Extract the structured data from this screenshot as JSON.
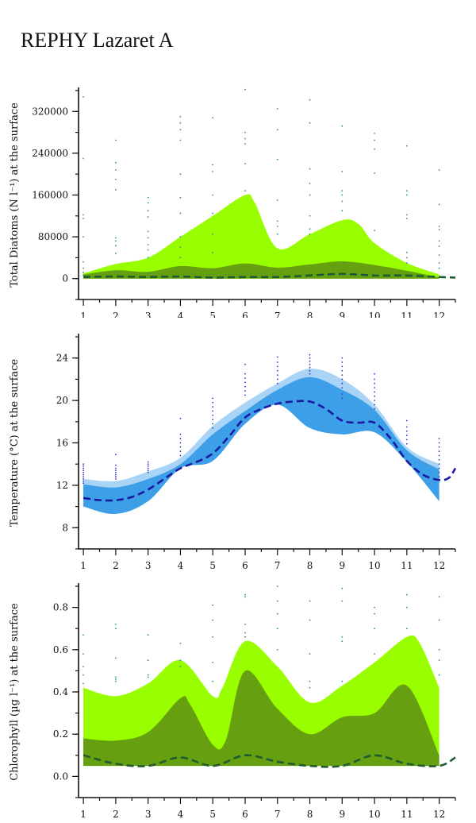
{
  "page_title": "REPHY Lazaret A",
  "chart_data": [
    {
      "id": "diatoms",
      "type": "area",
      "ylabel": "Total Diatoms (N l⁻¹) at the surface",
      "x_ticks": [
        1,
        2,
        3,
        4,
        5,
        6,
        7,
        8,
        9,
        10,
        11,
        12
      ],
      "xlim": [
        0.85,
        12.5
      ],
      "ylim": [
        -40000,
        360000
      ],
      "y_ticks": [
        0,
        80000,
        160000,
        240000,
        320000
      ],
      "y_tick_labels": [
        "0",
        "80000",
        "160000",
        "240000",
        "320000"
      ],
      "colors": {
        "outer_band": "#99ff00",
        "inner_band": "#66a010",
        "median": "#1e5c2f",
        "points": "#2a8f9a"
      },
      "outer_band": {
        "x": [
          1,
          2,
          3,
          4,
          5,
          6,
          6.3,
          7,
          8,
          9,
          9.5,
          10,
          11,
          12
        ],
        "upper": [
          10000,
          28000,
          40000,
          80000,
          120000,
          160000,
          145000,
          58000,
          85000,
          112000,
          105000,
          68000,
          30000,
          8000
        ],
        "lower": [
          0,
          0,
          0,
          0,
          0,
          0,
          0,
          0,
          0,
          0,
          0,
          0,
          0,
          0
        ]
      },
      "inner_band": {
        "x": [
          1,
          2,
          3,
          4,
          5,
          6,
          7,
          8,
          9,
          10,
          11,
          12
        ],
        "upper": [
          8000,
          16000,
          13000,
          24000,
          20000,
          29000,
          21000,
          27000,
          33000,
          26000,
          15000,
          2000
        ],
        "lower": [
          0,
          0,
          0,
          0,
          0,
          0,
          0,
          0,
          0,
          0,
          0,
          0
        ]
      },
      "median": {
        "x": [
          1,
          2,
          3,
          4,
          5,
          6,
          7,
          8,
          9,
          10,
          11,
          12,
          12.5
        ],
        "y": [
          3000,
          4000,
          3000,
          4000,
          2000,
          3000,
          3000,
          6000,
          9000,
          6000,
          6000,
          3000,
          2000
        ]
      },
      "points": [
        {
          "month": 1,
          "values": [
            348000,
            230000,
            122000,
            115000,
            80000,
            32000,
            20000,
            12000,
            6000
          ]
        },
        {
          "month": 2,
          "values": [
            265000,
            222000,
            208000,
            190000,
            170000,
            78000,
            72000,
            63000,
            48000,
            12000
          ]
        },
        {
          "month": 3,
          "values": [
            155000,
            145000,
            130000,
            118000,
            90000,
            78000,
            65000,
            55000,
            40000,
            10000
          ]
        },
        {
          "month": 4,
          "values": [
            310000,
            298000,
            285000,
            265000,
            200000,
            155000,
            125000,
            80000,
            60000,
            40000
          ]
        },
        {
          "month": 5,
          "values": [
            308000,
            218000,
            205000,
            160000,
            125000,
            85000,
            50000
          ]
        },
        {
          "month": 6,
          "values": [
            362000,
            280000,
            268000,
            258000,
            220000,
            168000
          ]
        },
        {
          "month": 7,
          "values": [
            325000,
            285000,
            228000,
            150000,
            110000,
            100000,
            85000
          ]
        },
        {
          "month": 8,
          "values": [
            342000,
            298000,
            210000,
            182000,
            160000,
            120000,
            95000,
            85000
          ]
        },
        {
          "month": 9,
          "values": [
            292000,
            205000,
            168000,
            160000,
            148000,
            130000
          ]
        },
        {
          "month": 10,
          "values": [
            278000,
            265000,
            248000,
            202000,
            92000
          ]
        },
        {
          "month": 11,
          "values": [
            254000,
            168000,
            160000,
            122000,
            115000,
            50000,
            40000,
            30000
          ]
        },
        {
          "month": 12,
          "values": [
            208000,
            142000,
            100000,
            94000,
            72000,
            62000,
            45000,
            30000,
            20000
          ]
        }
      ]
    },
    {
      "id": "temperature",
      "type": "area",
      "ylabel": "Temperature (°C) at the surface",
      "x_ticks": [
        1,
        2,
        3,
        4,
        5,
        6,
        7,
        8,
        9,
        10,
        11,
        12
      ],
      "xlim": [
        0.85,
        12.5
      ],
      "ylim": [
        6,
        26
      ],
      "y_ticks": [
        8,
        12,
        16,
        20,
        24
      ],
      "y_tick_labels": [
        "8",
        "12",
        "16",
        "20",
        "24"
      ],
      "colors": {
        "outer_band": "#a9d4f5",
        "inner_band": "#3d9fe8",
        "median": "#1a1aa0",
        "points": "#2a3acc"
      },
      "outer_band": {
        "x": [
          1,
          2,
          3,
          4,
          5,
          6,
          7,
          8,
          9,
          10,
          11,
          12
        ],
        "upper": [
          12.6,
          12.4,
          13.3,
          14.6,
          17.6,
          19.8,
          21.6,
          23.0,
          22.0,
          19.6,
          15.6,
          14.0
        ],
        "lower": [
          10.0,
          9.3,
          10.5,
          13.6,
          14.3,
          17.8,
          19.6,
          17.4,
          16.8,
          17.0,
          14.2,
          10.5
        ]
      },
      "inner_band": {
        "x": [
          1,
          2,
          3,
          4,
          5,
          6,
          7,
          8,
          9,
          10,
          11,
          12
        ],
        "upper": [
          12.1,
          11.8,
          12.6,
          14.0,
          16.8,
          19.0,
          21.0,
          22.2,
          21.0,
          19.1,
          15.3,
          13.5
        ],
        "lower": [
          10.0,
          9.3,
          10.5,
          13.6,
          14.3,
          17.8,
          19.6,
          17.4,
          16.8,
          17.0,
          14.2,
          10.5
        ]
      },
      "median": {
        "x": [
          1,
          1.5,
          2,
          2.5,
          3,
          3.5,
          4,
          4.5,
          5,
          5.5,
          6,
          6.5,
          7,
          7.5,
          8,
          8.5,
          9,
          9.5,
          10,
          10.5,
          11,
          11.5,
          12,
          12.3,
          12.5
        ],
        "y": [
          10.8,
          10.6,
          10.6,
          10.9,
          11.6,
          12.6,
          13.6,
          14.2,
          15.0,
          16.6,
          18.4,
          19.2,
          19.7,
          19.9,
          19.9,
          19.2,
          18.1,
          17.9,
          17.9,
          16.4,
          14.3,
          13.0,
          12.5,
          12.7,
          13.6
        ]
      },
      "points": [
        {
          "month": 1,
          "values": [
            14.0,
            13.8,
            13.6,
            13.4,
            13.2,
            13.0,
            12.8,
            12.6,
            12.4,
            12.2
          ]
        },
        {
          "month": 2,
          "values": [
            14.9,
            13.9,
            13.6,
            13.4,
            13.2,
            13.0,
            12.8,
            12.6
          ]
        },
        {
          "month": 3,
          "values": [
            14.2,
            14.0,
            13.8,
            13.6,
            13.4,
            13.2
          ]
        },
        {
          "month": 4,
          "values": [
            18.3,
            16.8,
            16.4,
            16.0,
            15.6,
            15.2,
            14.8
          ]
        },
        {
          "month": 5,
          "values": [
            20.2,
            19.8,
            19.4,
            19.0,
            18.6,
            18.2,
            17.8,
            17.4
          ]
        },
        {
          "month": 6,
          "values": [
            23.4,
            22.5,
            22.1,
            21.7,
            21.3,
            20.9,
            20.5
          ]
        },
        {
          "month": 7,
          "values": [
            24.1,
            23.6,
            23.2,
            22.8,
            22.4,
            22.0,
            21.6
          ]
        },
        {
          "month": 8,
          "values": [
            24.3,
            24.0,
            23.7,
            23.4,
            23.1,
            22.8,
            22.5
          ]
        },
        {
          "month": 9,
          "values": [
            24.0,
            23.6,
            23.2,
            22.8,
            22.4,
            22.0,
            21.6,
            21.2,
            20.6,
            20.2
          ]
        },
        {
          "month": 10,
          "values": [
            22.5,
            22.0,
            21.6,
            21.2,
            20.8,
            20.4,
            20.0,
            19.6,
            19.2
          ]
        },
        {
          "month": 11,
          "values": [
            18.1,
            17.5,
            17.1,
            16.7,
            16.3,
            15.9
          ]
        },
        {
          "month": 12,
          "values": [
            16.4,
            16.0,
            15.6,
            15.2,
            14.8,
            14.4,
            14.0,
            13.6,
            13.2,
            12.8
          ]
        }
      ]
    },
    {
      "id": "chlorophyll",
      "type": "area",
      "ylabel": "Chlorophyll (µg l⁻¹) at the surface",
      "x_ticks": [
        1,
        2,
        3,
        4,
        5,
        6,
        7,
        8,
        9,
        10,
        11,
        12
      ],
      "xlim": [
        0.85,
        12.5
      ],
      "ylim": [
        -0.1,
        0.9
      ],
      "y_ticks": [
        0.0,
        0.2,
        0.4,
        0.6,
        0.8
      ],
      "y_tick_labels": [
        "0.0",
        "0.2",
        "0.4",
        "0.6",
        "0.8"
      ],
      "colors": {
        "outer_band": "#99ff00",
        "inner_band": "#66a010",
        "median": "#1e5c2f",
        "points": "#2a8f9a"
      },
      "outer_band": {
        "x": [
          1,
          2,
          3,
          4,
          5,
          5.3,
          6,
          7,
          8,
          9,
          10,
          11,
          11.4,
          12
        ],
        "upper": [
          0.42,
          0.38,
          0.44,
          0.55,
          0.38,
          0.42,
          0.64,
          0.52,
          0.35,
          0.43,
          0.54,
          0.66,
          0.63,
          0.42
        ],
        "lower": [
          0.05,
          0.05,
          0.05,
          0.05,
          0.05,
          0.05,
          0.05,
          0.05,
          0.05,
          0.05,
          0.05,
          0.05,
          0.05,
          0.05
        ]
      },
      "inner_band": {
        "x": [
          1,
          2,
          3,
          4,
          4.3,
          5,
          5.4,
          6,
          7,
          8,
          9,
          10,
          11,
          12
        ],
        "upper": [
          0.18,
          0.17,
          0.21,
          0.37,
          0.34,
          0.15,
          0.17,
          0.5,
          0.32,
          0.2,
          0.28,
          0.3,
          0.43,
          0.1
        ],
        "lower": [
          0.05,
          0.05,
          0.05,
          0.05,
          0.05,
          0.05,
          0.05,
          0.05,
          0.05,
          0.05,
          0.05,
          0.05,
          0.05,
          0.05
        ]
      },
      "median": {
        "x": [
          1,
          2,
          3,
          4,
          5,
          6,
          7,
          8,
          9,
          10,
          11,
          12,
          12.5
        ],
        "y": [
          0.1,
          0.06,
          0.05,
          0.09,
          0.05,
          0.1,
          0.07,
          0.05,
          0.05,
          0.1,
          0.06,
          0.05,
          0.09
        ]
      },
      "points": [
        {
          "month": 1,
          "values": [
            0.67,
            0.58,
            0.52,
            0.48,
            0.44
          ]
        },
        {
          "month": 2,
          "values": [
            0.72,
            0.7,
            0.56,
            0.47,
            0.46,
            0.45
          ]
        },
        {
          "month": 3,
          "values": [
            0.67,
            0.55,
            0.48,
            0.47
          ]
        },
        {
          "month": 4,
          "values": [
            0.63,
            0.55,
            0.52
          ]
        },
        {
          "month": 5,
          "values": [
            0.81,
            0.74,
            0.66,
            0.54,
            0.45
          ]
        },
        {
          "month": 6,
          "values": [
            0.86,
            0.85,
            0.72,
            0.68,
            0.66
          ]
        },
        {
          "month": 7,
          "values": [
            0.9,
            0.83,
            0.77,
            0.7,
            0.6
          ]
        },
        {
          "month": 8,
          "values": [
            0.83,
            0.74,
            0.58,
            0.45,
            0.42
          ]
        },
        {
          "month": 9,
          "values": [
            0.89,
            0.83,
            0.66,
            0.64,
            0.45
          ]
        },
        {
          "month": 10,
          "values": [
            0.8,
            0.77,
            0.7,
            0.58
          ]
        },
        {
          "month": 11,
          "values": [
            0.86,
            0.8,
            0.7
          ]
        },
        {
          "month": 12,
          "values": [
            0.85,
            0.74,
            0.6,
            0.55,
            0.48
          ]
        }
      ]
    }
  ]
}
